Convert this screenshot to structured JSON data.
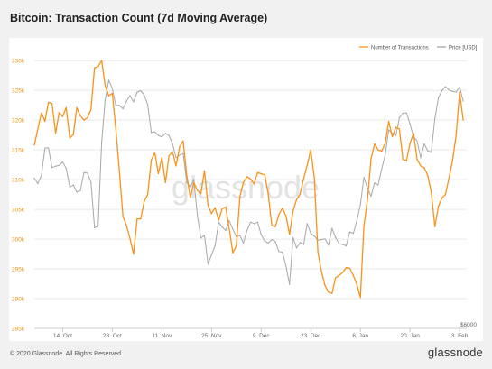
{
  "title": "Bitcoin: Transaction Count (7d Moving Average)",
  "footer": {
    "copyright": "© 2020 Glassnode. All Rights Reserved.",
    "logo": "glassnode"
  },
  "watermark": "glassnode",
  "colors": {
    "transactions": "#f7931a",
    "price": "#a8a8a8",
    "axis_label": "#e8941a",
    "tick": "#666666",
    "grid": "#e9e9e9",
    "background": "#ffffff",
    "page": "#f1f1f1"
  },
  "chart_data": {
    "type": "line",
    "legend_position": "top-right",
    "grid": true,
    "series": [
      {
        "name": "Number of Transactions",
        "axis": "left",
        "x": [
          "2019-10-06",
          "2019-10-07",
          "2019-10-08",
          "2019-10-09",
          "2019-10-10",
          "2019-10-11",
          "2019-10-12",
          "2019-10-13",
          "2019-10-14",
          "2019-10-15",
          "2019-10-16",
          "2019-10-17",
          "2019-10-18",
          "2019-10-19",
          "2019-10-20",
          "2019-10-21",
          "2019-10-22",
          "2019-10-23",
          "2019-10-24",
          "2019-10-25",
          "2019-10-26",
          "2019-10-27",
          "2019-10-28",
          "2019-10-29",
          "2019-10-30",
          "2019-10-31",
          "2019-11-01",
          "2019-11-02",
          "2019-11-03",
          "2019-11-04",
          "2019-11-05",
          "2019-11-06",
          "2019-11-07",
          "2019-11-08",
          "2019-11-09",
          "2019-11-10",
          "2019-11-11",
          "2019-11-12",
          "2019-11-13",
          "2019-11-14",
          "2019-11-15",
          "2019-11-16",
          "2019-11-17",
          "2019-11-18",
          "2019-11-19",
          "2019-11-20",
          "2019-11-21",
          "2019-11-22",
          "2019-11-23",
          "2019-11-24",
          "2019-11-25",
          "2019-11-26",
          "2019-11-27",
          "2019-11-28",
          "2019-11-29",
          "2019-11-30",
          "2019-12-01",
          "2019-12-02",
          "2019-12-03",
          "2019-12-04",
          "2019-12-05",
          "2019-12-06",
          "2019-12-07",
          "2019-12-08",
          "2019-12-09",
          "2019-12-10",
          "2019-12-11",
          "2019-12-12",
          "2019-12-13",
          "2019-12-14",
          "2019-12-15",
          "2019-12-16",
          "2019-12-17",
          "2019-12-18",
          "2019-12-19",
          "2019-12-20",
          "2019-12-21",
          "2019-12-22",
          "2019-12-23",
          "2019-12-24",
          "2019-12-25",
          "2019-12-26",
          "2019-12-27",
          "2019-12-28",
          "2019-12-29",
          "2019-12-30",
          "2019-12-31",
          "2020-01-01",
          "2020-01-02",
          "2020-01-03",
          "2020-01-04",
          "2020-01-05",
          "2020-01-06",
          "2020-01-07",
          "2020-01-08",
          "2020-01-09",
          "2020-01-10",
          "2020-01-11",
          "2020-01-12",
          "2020-01-13",
          "2020-01-14",
          "2020-01-15",
          "2020-01-16",
          "2020-01-17",
          "2020-01-18",
          "2020-01-19",
          "2020-01-20",
          "2020-01-21",
          "2020-01-22",
          "2020-01-23",
          "2020-01-24",
          "2020-01-25",
          "2020-01-26",
          "2020-01-27",
          "2020-01-28",
          "2020-01-29",
          "2020-01-30",
          "2020-01-31",
          "2020-02-01",
          "2020-02-02",
          "2020-02-03",
          "2020-02-04"
        ],
        "values": [
          315800,
          318500,
          321200,
          319800,
          323000,
          322800,
          317800,
          321300,
          320600,
          322100,
          317000,
          317600,
          322100,
          320700,
          320000,
          320400,
          321800,
          328800,
          329000,
          330000,
          325800,
          324100,
          324500,
          318500,
          311500,
          303800,
          302300,
          300100,
          297500,
          303400,
          303400,
          306300,
          307500,
          313300,
          314500,
          311000,
          313700,
          309500,
          314000,
          314700,
          312300,
          315500,
          316500,
          310800,
          307000,
          309500,
          308200,
          307600,
          311500,
          305700,
          304300,
          305300,
          303200,
          305100,
          305400,
          301800,
          297700,
          298900,
          307100,
          309500,
          310500,
          310100,
          309300,
          311200,
          311000,
          310800,
          307600,
          302300,
          302100,
          304100,
          305200,
          303900,
          300800,
          304700,
          306600,
          307600,
          310200,
          312400,
          315000,
          310300,
          297900,
          294600,
          292200,
          291100,
          290900,
          293500,
          293900,
          294400,
          295200,
          295100,
          293900,
          292400,
          290200,
          302200,
          306700,
          313500,
          316000,
          315000,
          314800,
          316100,
          319800,
          317200,
          318800,
          318500,
          313400,
          313200,
          316100,
          317800,
          313400,
          312300,
          312000,
          310700,
          307900,
          302100,
          305500,
          306900,
          307500,
          310300,
          313200,
          317400,
          324700,
          320000
        ]
      },
      {
        "name": "Price [USD]",
        "axis": "right",
        "x": [
          "2019-10-06",
          "2019-10-07",
          "2019-10-08",
          "2019-10-09",
          "2019-10-10",
          "2019-10-11",
          "2019-10-12",
          "2019-10-13",
          "2019-10-14",
          "2019-10-15",
          "2019-10-16",
          "2019-10-17",
          "2019-10-18",
          "2019-10-19",
          "2019-10-20",
          "2019-10-21",
          "2019-10-22",
          "2019-10-23",
          "2019-10-24",
          "2019-10-25",
          "2019-10-26",
          "2019-10-27",
          "2019-10-28",
          "2019-10-29",
          "2019-10-30",
          "2019-10-31",
          "2019-11-01",
          "2019-11-02",
          "2019-11-03",
          "2019-11-04",
          "2019-11-05",
          "2019-11-06",
          "2019-11-07",
          "2019-11-08",
          "2019-11-09",
          "2019-11-10",
          "2019-11-11",
          "2019-11-12",
          "2019-11-13",
          "2019-11-14",
          "2019-11-15",
          "2019-11-16",
          "2019-11-17",
          "2019-11-18",
          "2019-11-19",
          "2019-11-20",
          "2019-11-21",
          "2019-11-22",
          "2019-11-23",
          "2019-11-24",
          "2019-11-25",
          "2019-11-26",
          "2019-11-27",
          "2019-11-28",
          "2019-11-29",
          "2019-11-30",
          "2019-12-01",
          "2019-12-02",
          "2019-12-03",
          "2019-12-04",
          "2019-12-05",
          "2019-12-06",
          "2019-12-07",
          "2019-12-08",
          "2019-12-09",
          "2019-12-10",
          "2019-12-11",
          "2019-12-12",
          "2019-12-13",
          "2019-12-14",
          "2019-12-15",
          "2019-12-16",
          "2019-12-17",
          "2019-12-18",
          "2019-12-19",
          "2019-12-20",
          "2019-12-21",
          "2019-12-22",
          "2019-12-23",
          "2019-12-24",
          "2019-12-25",
          "2019-12-26",
          "2019-12-27",
          "2019-12-28",
          "2019-12-29",
          "2019-12-30",
          "2019-12-31",
          "2020-01-01",
          "2020-01-02",
          "2020-01-03",
          "2020-01-04",
          "2020-01-05",
          "2020-01-06",
          "2020-01-07",
          "2020-01-08",
          "2020-01-09",
          "2020-01-10",
          "2020-01-11",
          "2020-01-12",
          "2020-01-13",
          "2020-01-14",
          "2020-01-15",
          "2020-01-16",
          "2020-01-17",
          "2020-01-18",
          "2020-01-19",
          "2020-01-20",
          "2020-01-21",
          "2020-01-22",
          "2020-01-23",
          "2020-01-24",
          "2020-01-25",
          "2020-01-26",
          "2020-01-27",
          "2020-01-28",
          "2020-01-29",
          "2020-01-30",
          "2020-01-31",
          "2020-02-01",
          "2020-02-02",
          "2020-02-03",
          "2020-02-04"
        ],
        "values": [
          8150,
          8070,
          8190,
          8580,
          8580,
          8300,
          8320,
          8330,
          8380,
          8290,
          8020,
          8050,
          7950,
          7970,
          8230,
          8220,
          8090,
          7440,
          7460,
          8660,
          9270,
          9550,
          9430,
          9190,
          9190,
          9140,
          9250,
          9330,
          9240,
          9380,
          9400,
          9340,
          9200,
          8800,
          8810,
          8760,
          8740,
          8790,
          8760,
          8640,
          8440,
          8480,
          8500,
          8090,
          8020,
          8130,
          7620,
          7290,
          7330,
          6920,
          7050,
          7180,
          7520,
          7450,
          7400,
          7540,
          7420,
          7310,
          7330,
          7220,
          7400,
          7520,
          7500,
          7520,
          7340,
          7250,
          7220,
          7270,
          7240,
          7100,
          7090,
          6890,
          6630,
          7300,
          7150,
          7230,
          7200,
          7500,
          7360,
          7320,
          7260,
          7270,
          7280,
          7190,
          7430,
          7300,
          7210,
          7200,
          7180,
          7380,
          7360,
          7540,
          7770,
          8160,
          8000,
          7890,
          8080,
          8050,
          8280,
          8480,
          8840,
          8790,
          8760,
          9010,
          9080,
          9080,
          8920,
          8740,
          8680,
          8440,
          8640,
          8540,
          8520,
          9000,
          9300,
          9400,
          9460,
          9410,
          9390,
          9380,
          9450,
          9250
        ]
      }
    ],
    "y_left": {
      "min": 285000,
      "max": 332000,
      "ticks": [
        285000,
        290000,
        295000,
        300000,
        305000,
        310000,
        315000,
        320000,
        325000,
        330000
      ],
      "tick_labels": [
        "285k",
        "290k",
        "295k",
        "300k",
        "305k",
        "310k",
        "315k",
        "320k",
        "325k",
        "330k"
      ]
    },
    "y_right": {
      "min": 6000,
      "max": 10000,
      "ticks": [
        6000
      ],
      "tick_labels": [
        "$6000"
      ]
    },
    "x_axis": {
      "min": "2019-10-06",
      "max": "2020-02-05",
      "ticks": [
        "2019-10-14",
        "2019-10-28",
        "2019-11-11",
        "2019-11-25",
        "2019-12-09",
        "2019-12-23",
        "2020-01-06",
        "2020-01-20",
        "2020-02-03"
      ],
      "tick_labels": [
        "14. Oct",
        "28. Oct",
        "11. Nov",
        "25. Nov",
        "9. Dec",
        "23. Dec",
        "6. Jan",
        "20. Jan",
        "3. Feb"
      ]
    }
  }
}
